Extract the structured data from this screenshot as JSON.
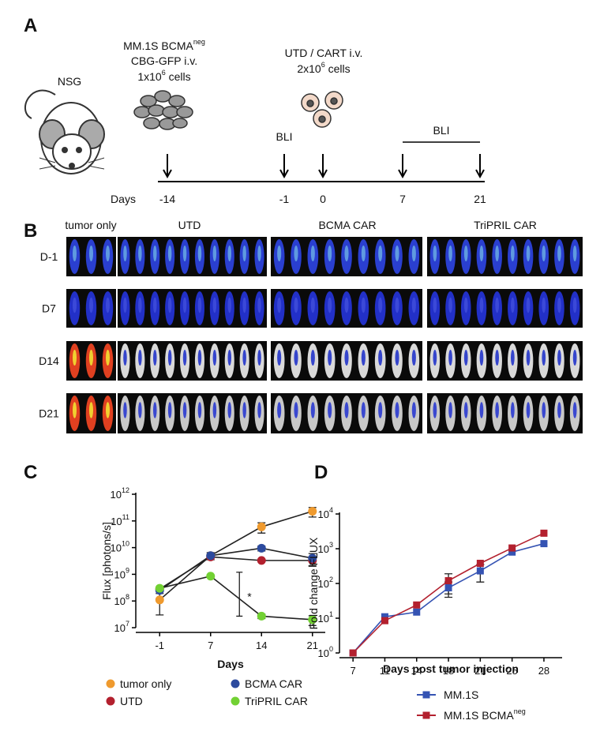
{
  "panel_labels": [
    "A",
    "B",
    "C",
    "D"
  ],
  "panel_a": {
    "host": "NSG",
    "tumor": {
      "line1": "MM.1S BCMA",
      "line1_sup": "neg",
      "line2": "CBG-GFP i.v.",
      "line3": "1x10",
      "line3_sup": "6",
      "line3_end": " cells"
    },
    "cart": {
      "line1": "UTD / CART i.v.",
      "line2": "2x10",
      "line2_sup": "6",
      "line2_end": " cells"
    },
    "bli_labels": [
      "BLI",
      "BLI"
    ],
    "days_label": "Days",
    "days": [
      "-14",
      "-1",
      "0",
      "7",
      "21"
    ]
  },
  "panel_b": {
    "columns": [
      "tumor only",
      "UTD",
      "BCMA CAR",
      "TriPRIL CAR"
    ],
    "rows": [
      "D-1",
      "D7",
      "D14",
      "D21"
    ]
  },
  "chart_data": [
    {
      "type": "line",
      "ylabel": "Flux [photons/s]",
      "xlabel": "Days",
      "log_y": true,
      "marker": "circle",
      "categories": [
        "-1",
        "7",
        "14",
        "21"
      ],
      "ylim": [
        10000000.0,
        1000000000000.0
      ],
      "yticks": [
        {
          "value": 10000000.0,
          "label": "10",
          "sup": "7"
        },
        {
          "value": 100000000.0,
          "label": "10",
          "sup": "8"
        },
        {
          "value": 1000000000.0,
          "label": "10",
          "sup": "9"
        },
        {
          "value": 10000000000.0,
          "label": "10",
          "sup": "10"
        },
        {
          "value": 100000000000.0,
          "label": "10",
          "sup": "11"
        },
        {
          "value": 1000000000000.0,
          "label": "10",
          "sup": "12"
        }
      ],
      "series": [
        {
          "name": "tumor only",
          "color": "#ef9a2e",
          "values": [
            110000000.0,
            5000000000.0,
            60000000000.0,
            230000000000.0
          ],
          "errors": [
            80000000.0,
            1500000000.0,
            25000000000.0,
            90000000000.0
          ]
        },
        {
          "name": "UTD",
          "color": "#b3202e",
          "values": [
            280000000.0,
            4500000000.0,
            3300000000.0,
            3300000000.0
          ],
          "errors": [
            null,
            null,
            null,
            1200000000.0
          ]
        },
        {
          "name": "BCMA CAR",
          "color": "#2c4a9e",
          "values": [
            250000000.0,
            5000000000.0,
            9500000000.0,
            4000000000.0
          ],
          "errors": [
            null,
            null,
            2000000000.0,
            2000000000.0
          ]
        },
        {
          "name": "TriPRIL CAR",
          "color": "#72d133",
          "values": [
            300000000.0,
            850000000.0,
            27000000.0,
            20000000.0
          ],
          "errors": [
            null,
            null,
            5000000.0,
            8000000.0
          ]
        }
      ],
      "annotation": {
        "text": "*",
        "x": "14",
        "range": [
          27000000.0,
          1200000000.0
        ]
      }
    },
    {
      "type": "line",
      "ylabel": "Fold change FLUX",
      "xlabel": "Days post tumor injection",
      "log_y": true,
      "marker": "square",
      "categories": [
        "7",
        "11",
        "14",
        "18",
        "21",
        "25",
        "28"
      ],
      "ylim": [
        1,
        10000
      ],
      "yticks": [
        {
          "value": 1,
          "label": "10",
          "sup": "0"
        },
        {
          "value": 10,
          "label": "10",
          "sup": "1"
        },
        {
          "value": 100,
          "label": "10",
          "sup": "2"
        },
        {
          "value": 1000,
          "label": "10",
          "sup": "3"
        },
        {
          "value": 10000,
          "label": "10",
          "sup": "4"
        }
      ],
      "series": [
        {
          "name": "MM.1S",
          "color": "#3553b3",
          "values": [
            1,
            11,
            15,
            75,
            230,
            800,
            1400
          ],
          "errors": [
            null,
            null,
            null,
            35,
            120,
            null,
            null
          ]
        },
        {
          "name": "MM.1S BCMA",
          "name_sup": "neg",
          "color": "#b3202e",
          "values": [
            1,
            8.5,
            24,
            120,
            380,
            1050,
            2800
          ],
          "errors": [
            null,
            null,
            null,
            70,
            null,
            null,
            null
          ]
        }
      ]
    }
  ]
}
